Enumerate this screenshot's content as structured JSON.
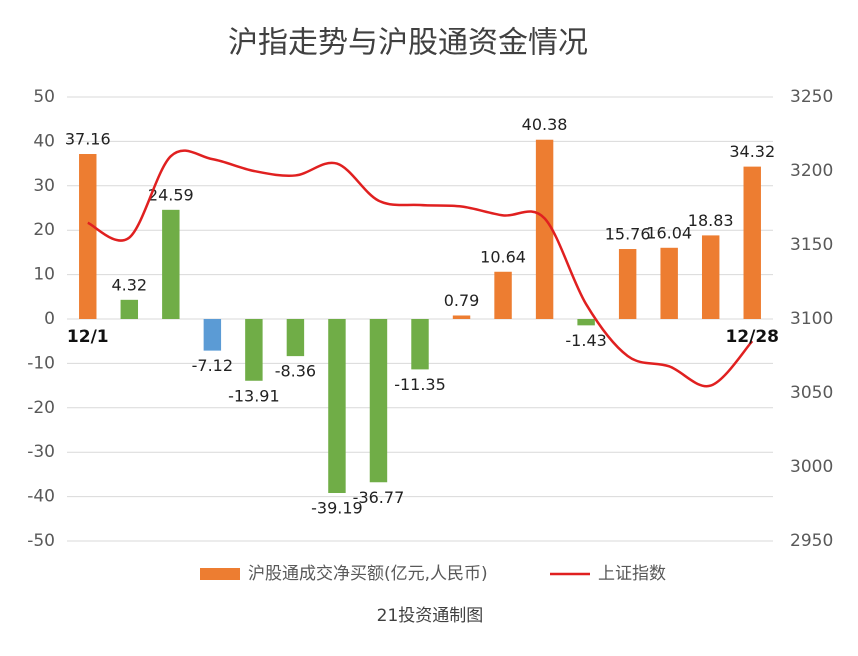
{
  "chart_data": {
    "type": "combo",
    "title": "沪指走势与沪股通资金情况",
    "categories": [
      "12/1",
      null,
      null,
      null,
      null,
      null,
      null,
      null,
      null,
      null,
      null,
      null,
      null,
      null,
      null,
      null,
      "12/28"
    ],
    "series": [
      {
        "name": "沪股通成交净买额(亿元,人民币)",
        "type": "bar",
        "color": "#ed7d31",
        "colors": [
          "#ed7d31",
          "#70ad47",
          "#70ad47",
          "#5b9bd5",
          "#70ad47",
          "#70ad47",
          "#70ad47",
          "#70ad47",
          "#70ad47",
          "#ed7d31",
          "#ed7d31",
          "#ed7d31",
          "#70ad47",
          "#ed7d31",
          "#ed7d31",
          "#ed7d31",
          "#ed7d31"
        ],
        "values": [
          37.16,
          4.32,
          24.59,
          -7.12,
          -13.91,
          -8.36,
          -39.19,
          -36.77,
          -11.35,
          0.79,
          10.64,
          40.38,
          -1.43,
          15.76,
          16.04,
          18.83,
          34.32
        ]
      },
      {
        "name": "上证指数",
        "type": "line",
        "color": "#e02020",
        "axis": "y2",
        "values": [
          3165,
          3155,
          3210,
          3208,
          3200,
          3197,
          3205,
          3180,
          3177,
          3176,
          3170,
          3168,
          3110,
          3075,
          3068,
          3055,
          3085
        ]
      }
    ],
    "ylim": [
      -50,
      50
    ],
    "yticks": [
      -50,
      -40,
      -30,
      -20,
      -10,
      0,
      10,
      20,
      30,
      40,
      50
    ],
    "y2lim": [
      2950,
      3250
    ],
    "y2ticks": [
      2950,
      3000,
      3050,
      3100,
      3150,
      3200,
      3250
    ],
    "grid": true,
    "legend": "bottom",
    "footer": "21投资通制图"
  }
}
